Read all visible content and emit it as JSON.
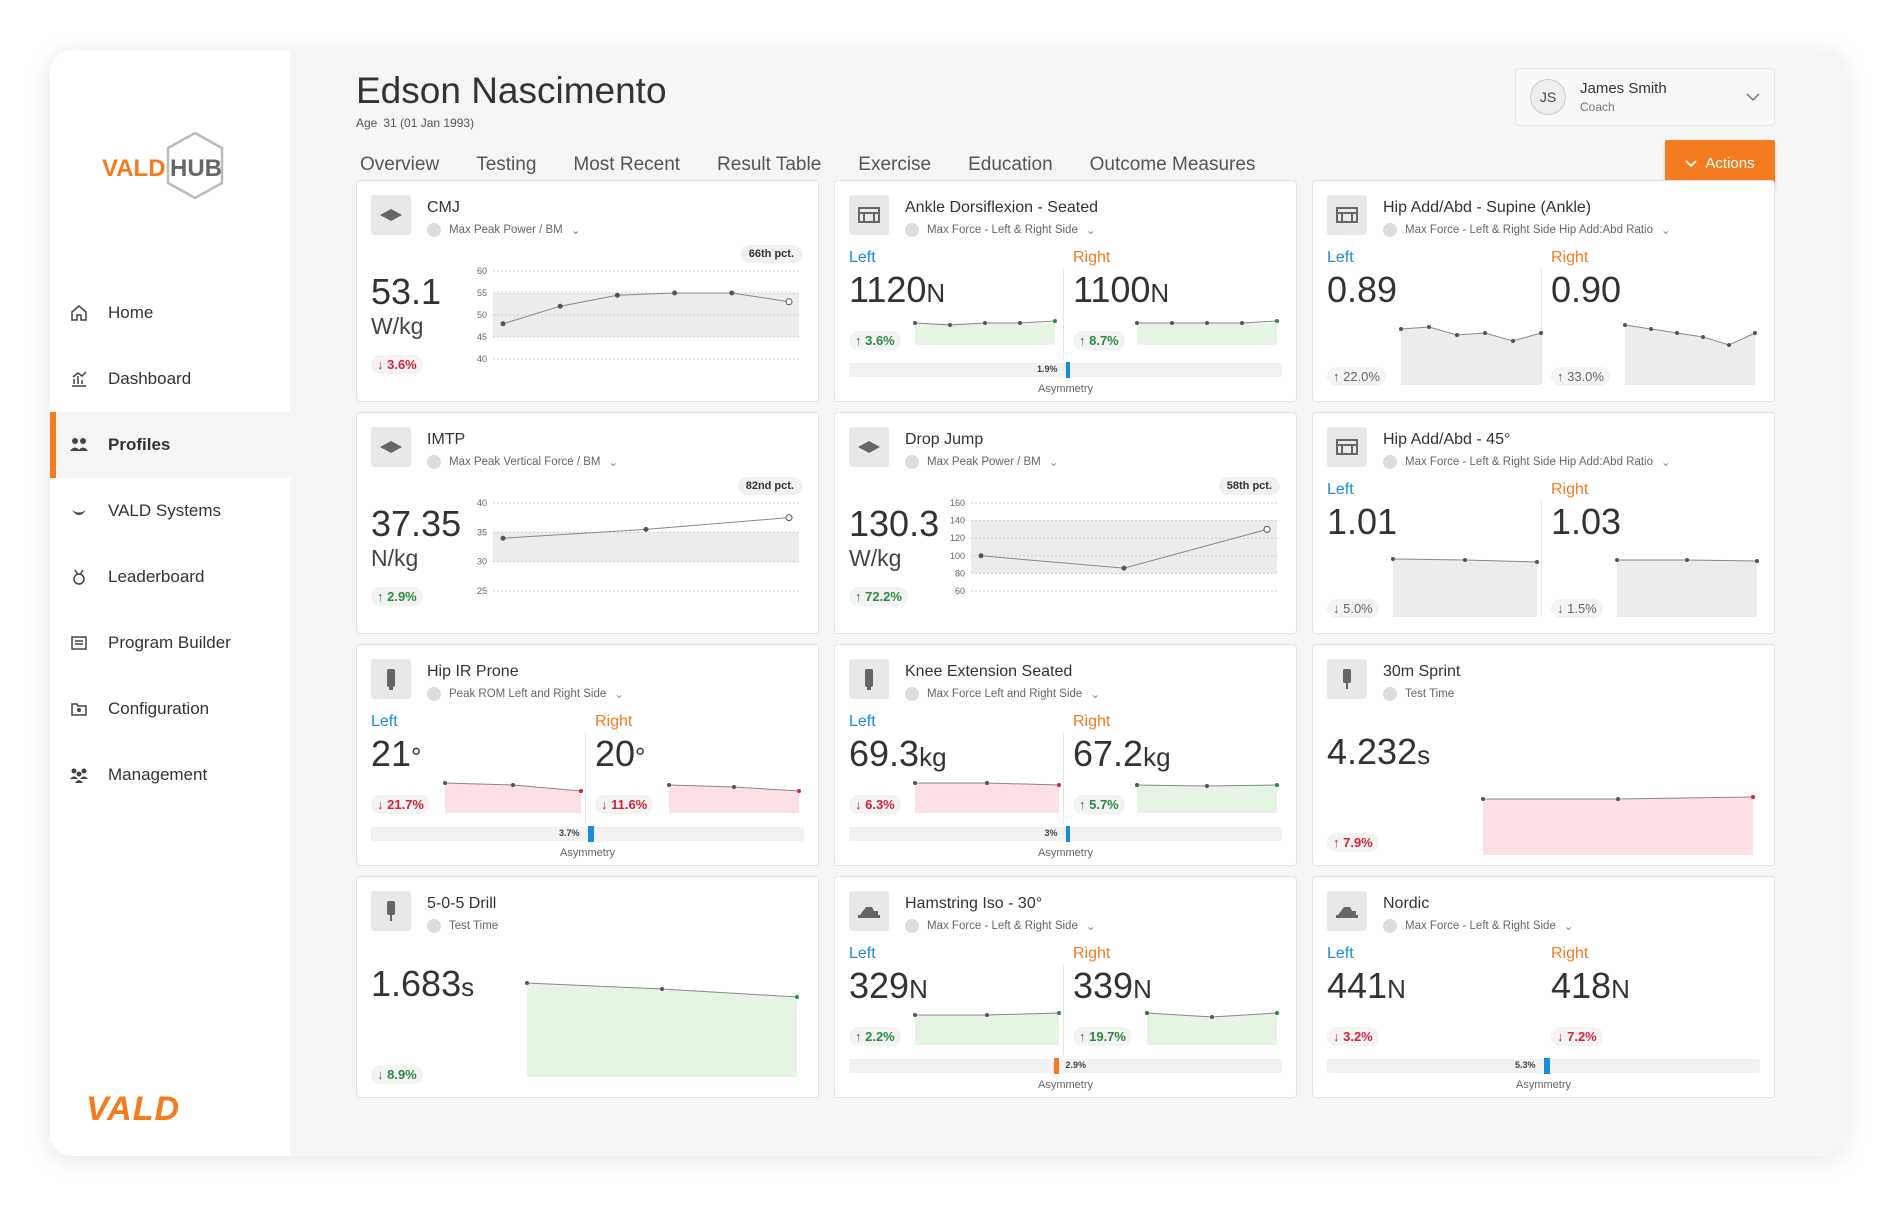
{
  "sidebar": {
    "logo_text": "VALDHUB",
    "brand": "VALD",
    "items": [
      {
        "label": "Home",
        "icon": "home-icon"
      },
      {
        "label": "Dashboard",
        "icon": "dashboard-icon"
      },
      {
        "label": "Profiles",
        "icon": "profiles-icon",
        "active": true
      },
      {
        "label": "VALD Systems",
        "icon": "vald-systems-icon"
      },
      {
        "label": "Leaderboard",
        "icon": "leaderboard-icon"
      },
      {
        "label": "Program Builder",
        "icon": "program-builder-icon"
      },
      {
        "label": "Configuration",
        "icon": "configuration-icon"
      },
      {
        "label": "Management",
        "icon": "management-icon"
      }
    ]
  },
  "header": {
    "name": "Edson Nascimento",
    "age_label": "Age",
    "age_value": "31 (01 Jan 1993)",
    "tabs": [
      "Overview",
      "Testing",
      "Most Recent",
      "Result Table",
      "Exercise",
      "Education",
      "Outcome Measures"
    ],
    "user": {
      "initials": "JS",
      "name": "James Smith",
      "role": "Coach"
    },
    "actions_label": "Actions"
  },
  "colors": {
    "accent": "#f47b20",
    "left": "#1a8cd8",
    "down": "#d3243a",
    "up": "#2a8c3c"
  },
  "asym_label": "Asymmetry",
  "cards": [
    {
      "title": "CMJ",
      "sub": "Max Peak Power / BM",
      "value": "53.1",
      "unit": "W/kg",
      "change": "↓ 3.6%",
      "pct": "66th pct.",
      "ticks": [
        "60",
        "55",
        "50",
        "45",
        "40"
      ],
      "series": [
        48,
        52,
        54.5,
        55,
        55,
        53
      ]
    },
    {
      "title": "Ankle Dorsiflexion - Seated",
      "sub": "Max Force - Left & Right Side",
      "left_label": "Left",
      "right_label": "Right",
      "left_value": "1120",
      "left_unit": "N",
      "right_value": "1100",
      "right_unit": "N",
      "left_change": "↑ 3.6%",
      "right_change": "↑ 8.7%",
      "asym": "1.9%"
    },
    {
      "title": "Hip Add/Abd - Supine (Ankle)",
      "sub": "Max Force - Left & Right Side Hip Add:Abd Ratio",
      "left_label": "Left",
      "right_label": "Right",
      "left_value": "0.89",
      "right_value": "0.90",
      "left_change": "↑ 22.0%",
      "right_change": "↑ 33.0%"
    },
    {
      "title": "IMTP",
      "sub": "Max Peak Vertical Force / BM",
      "value": "37.35",
      "unit": "N/kg",
      "change": "↑ 2.9%",
      "pct": "82nd pct.",
      "ticks": [
        "40",
        "35",
        "30",
        "25"
      ],
      "series": [
        34,
        35.5,
        37.5
      ]
    },
    {
      "title": "Drop Jump",
      "sub": "Max Peak Power / BM",
      "value": "130.3",
      "unit": "W/kg",
      "change": "↑ 72.2%",
      "pct": "58th pct.",
      "ticks": [
        "160",
        "140",
        "120",
        "100",
        "80",
        "60"
      ],
      "series": [
        100,
        86,
        130
      ]
    },
    {
      "title": "Hip Add/Abd - 45°",
      "sub": "Max Force - Left & Right Side Hip Add:Abd Ratio",
      "left_label": "Left",
      "right_label": "Right",
      "left_value": "1.01",
      "right_value": "1.03",
      "left_change": "↓ 5.0%",
      "right_change": "↓ 1.5%"
    },
    {
      "title": "Hip IR Prone",
      "sub": "Peak ROM Left and Right Side",
      "left_label": "Left",
      "right_label": "Right",
      "left_value": "21",
      "left_unit": "°",
      "right_value": "20",
      "right_unit": "°",
      "left_change": "↓ 21.7%",
      "right_change": "↓ 11.6%",
      "asym": "3.7%"
    },
    {
      "title": "Knee Extension Seated",
      "sub": "Max Force Left and Right Side",
      "left_label": "Left",
      "right_label": "Right",
      "left_value": "69.3",
      "left_unit": "kg",
      "right_value": "67.2",
      "right_unit": "kg",
      "left_change": "↓ 6.3%",
      "right_change": "↑ 5.7%",
      "asym": "3%"
    },
    {
      "title": "30m Sprint",
      "sub": "Test Time",
      "value": "4.232",
      "unit": "s",
      "change": "↑ 7.9%"
    },
    {
      "title": "5-0-5 Drill",
      "sub": "Test Time",
      "value": "1.683",
      "unit": "s",
      "change": "↓ 8.9%"
    },
    {
      "title": "Hamstring Iso - 30°",
      "sub": "Max Force - Left & Right Side",
      "left_label": "Left",
      "right_label": "Right",
      "left_value": "329",
      "left_unit": "N",
      "right_value": "339",
      "right_unit": "N",
      "left_change": "↑ 2.2%",
      "right_change": "↑ 19.7%",
      "asym": "2.9%"
    },
    {
      "title": "Nordic",
      "sub": "Max Force - Left & Right Side",
      "left_label": "Left",
      "right_label": "Right",
      "left_value": "441",
      "left_unit": "N",
      "right_value": "418",
      "right_unit": "N",
      "left_change": "↓ 3.2%",
      "right_change": "↓ 7.2%",
      "asym": "5.3%"
    }
  ]
}
